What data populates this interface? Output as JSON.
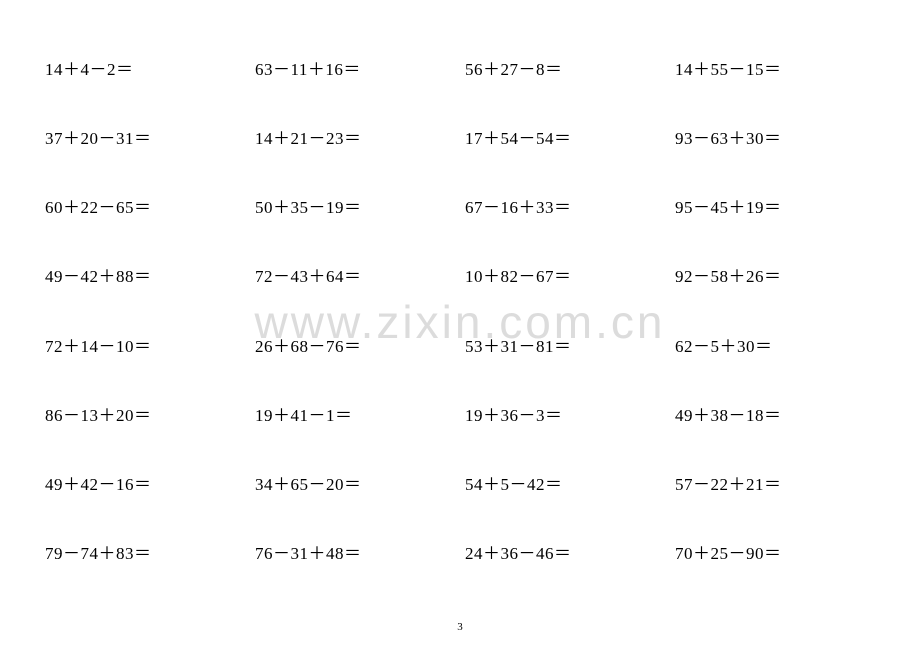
{
  "watermark": "www.zixin.com.cn",
  "page_number": "3",
  "font_size_cell": 17,
  "font_size_watermark": 46,
  "font_size_page_number": 11,
  "text_color": "#000000",
  "watermark_color": "#dcdcdc",
  "background_color": "#ffffff",
  "columns": 4,
  "rows": 8,
  "problems": [
    [
      "14＋4－2＝",
      "63－11＋16＝",
      "56＋27－8＝",
      "14＋55－15＝"
    ],
    [
      "37＋20－31＝",
      "14＋21－23＝",
      "17＋54－54＝",
      "93－63＋30＝"
    ],
    [
      "60＋22－65＝",
      "50＋35－19＝",
      "67－16＋33＝",
      "95－45＋19＝"
    ],
    [
      "49－42＋88＝",
      "72－43＋64＝",
      "10＋82－67＝",
      "92－58＋26＝"
    ],
    [
      "72＋14－10＝",
      "26＋68－76＝",
      "53＋31－81＝",
      "62－5＋30＝"
    ],
    [
      "86－13＋20＝",
      "19＋41－1＝",
      "19＋36－3＝",
      "49＋38－18＝"
    ],
    [
      "49＋42－16＝",
      "34＋65－20＝",
      "54＋5－42＝",
      "57－22＋21＝"
    ],
    [
      "79－74＋83＝",
      "76－31＋48＝",
      "24＋36－46＝",
      "70＋25－90＝"
    ]
  ]
}
